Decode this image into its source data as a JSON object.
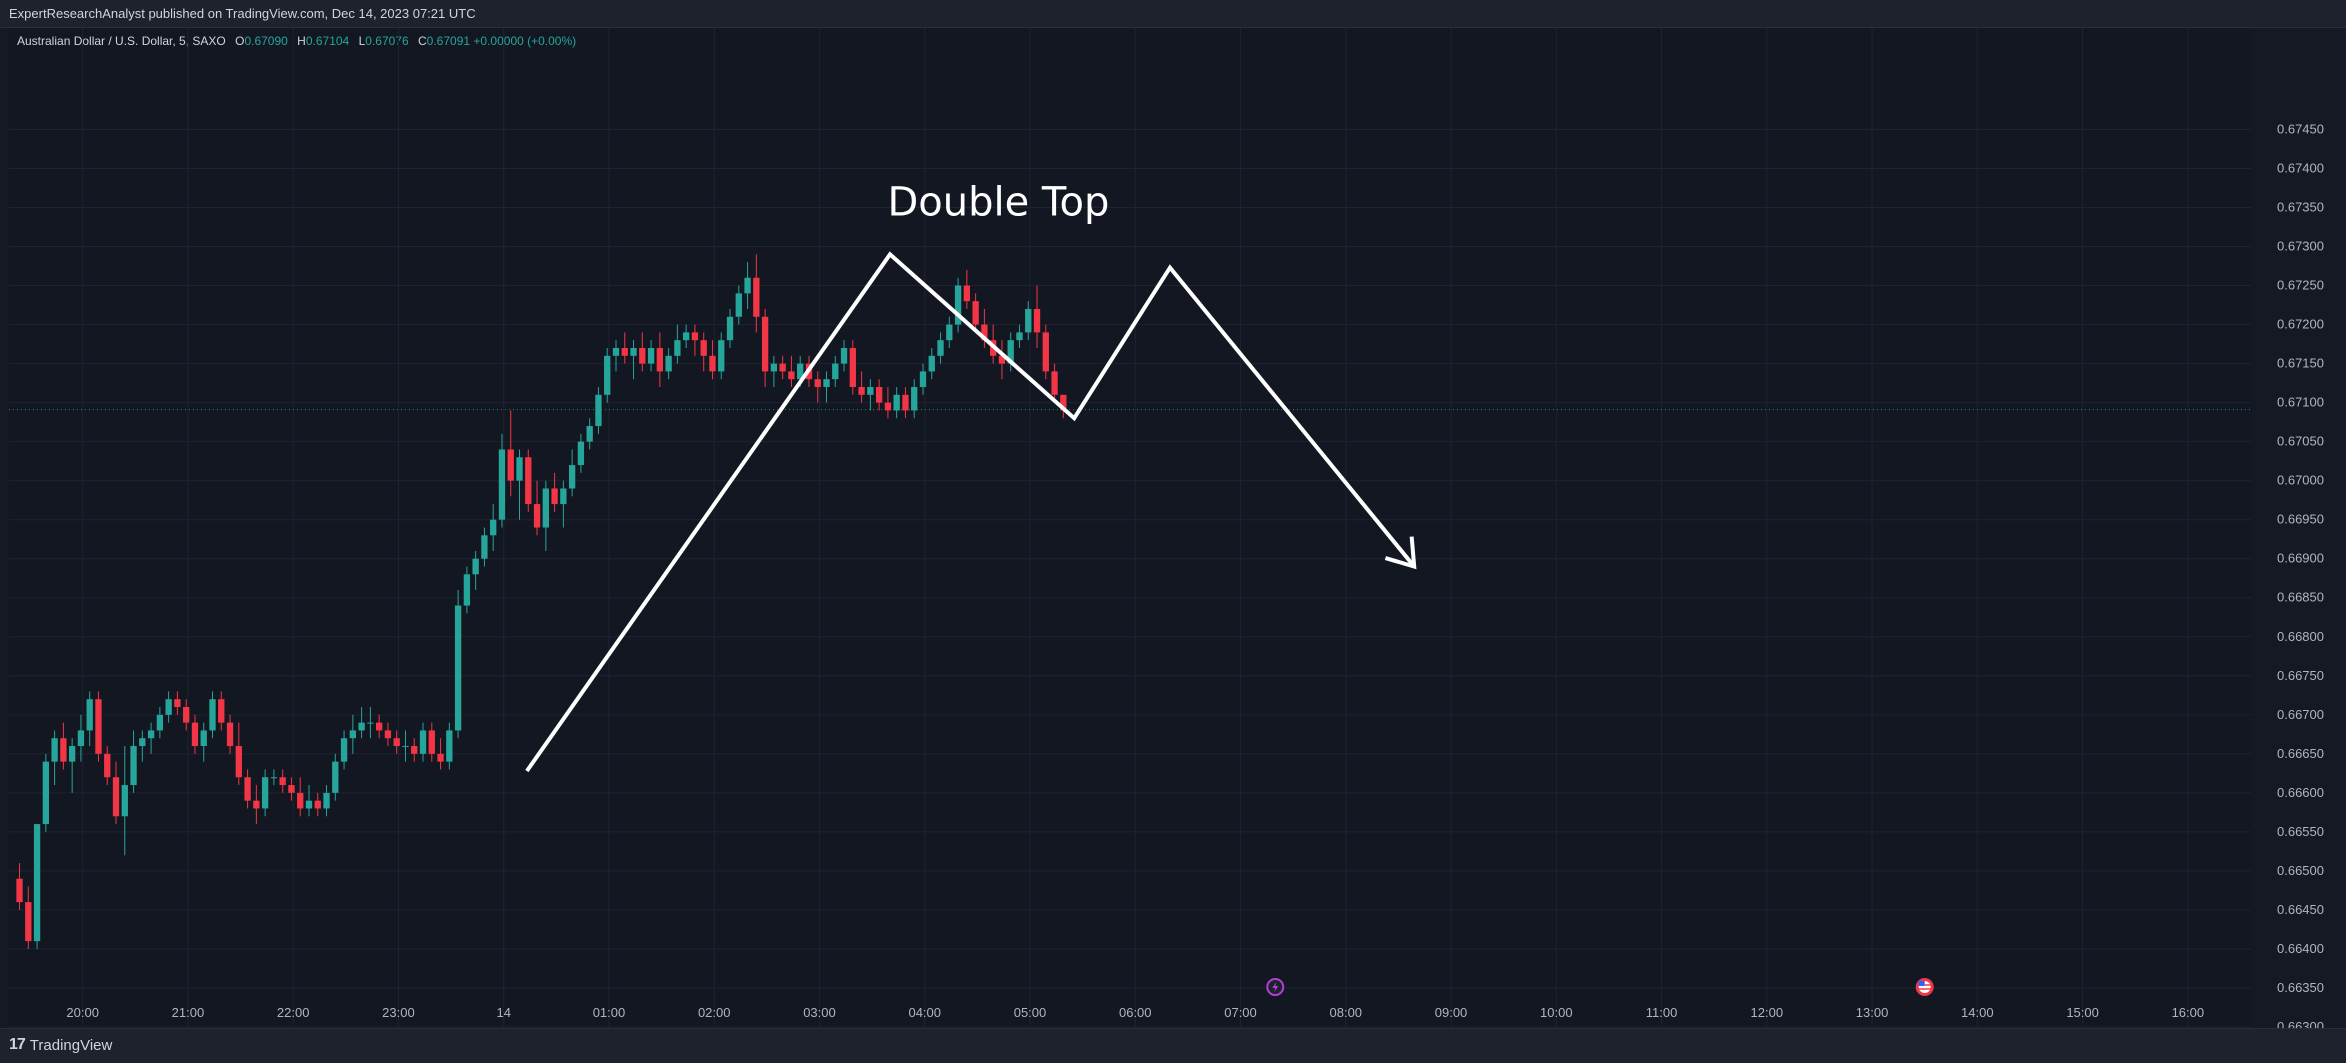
{
  "header": {
    "publisher": "ExpertResearchAnalyst published on TradingView.com, Dec 14, 2023 07:21 UTC"
  },
  "legend": {
    "symbol": "Australian Dollar / U.S. Dollar, 5, SAXO",
    "o_label": "O",
    "o_value": "0.67090",
    "h_label": "H",
    "h_value": "0.67104",
    "l_label": "L",
    "l_value": "0.67076",
    "c_label": "C",
    "c_value": "0.67091",
    "change": "+0.00000 (+0.00%)"
  },
  "footer": {
    "brand": "TradingView",
    "logo": "17"
  },
  "colors": {
    "up": "#26a69a",
    "down": "#f23645",
    "background": "#131722",
    "grid": "#1f2330",
    "annotation": "#ffffff"
  },
  "event_icons": [
    "lightning-event-icon",
    "us-flag-event-icon"
  ],
  "chart_data": {
    "type": "candlestick",
    "annotation": "Double Top",
    "ylim": [
      0.663,
      0.6758
    ],
    "xlim": [
      -0.7,
      20.6
    ],
    "y_ticks": [
      "0.67450",
      "0.67400",
      "0.67350",
      "0.67300",
      "0.67250",
      "0.67200",
      "0.67150",
      "0.67100",
      "0.67050",
      "0.67000",
      "0.66950",
      "0.66900",
      "0.66850",
      "0.66800",
      "0.66750",
      "0.66700",
      "0.66650",
      "0.66600",
      "0.66550",
      "0.66500",
      "0.66450",
      "0.66400",
      "0.66350",
      "0.66300"
    ],
    "x_ticks": [
      {
        "label": "20:00",
        "h": 0
      },
      {
        "label": "21:00",
        "h": 1
      },
      {
        "label": "22:00",
        "h": 2
      },
      {
        "label": "23:00",
        "h": 3
      },
      {
        "label": "14",
        "h": 4
      },
      {
        "label": "01:00",
        "h": 5
      },
      {
        "label": "02:00",
        "h": 6
      },
      {
        "label": "03:00",
        "h": 7
      },
      {
        "label": "04:00",
        "h": 8
      },
      {
        "label": "05:00",
        "h": 9
      },
      {
        "label": "06:00",
        "h": 10
      },
      {
        "label": "07:00",
        "h": 11
      },
      {
        "label": "08:00",
        "h": 12
      },
      {
        "label": "09:00",
        "h": 13
      },
      {
        "label": "10:00",
        "h": 14
      },
      {
        "label": "11:00",
        "h": 15
      },
      {
        "label": "12:00",
        "h": 16
      },
      {
        "label": "13:00",
        "h": 17
      },
      {
        "label": "14:00",
        "h": 18
      },
      {
        "label": "15:00",
        "h": 19
      },
      {
        "label": "16:00",
        "h": 20
      }
    ],
    "current_price": 0.67091,
    "candles": [
      [
        0.6649,
        0.6651,
        0.6645,
        0.6646
      ],
      [
        0.6646,
        0.6648,
        0.664,
        0.6641
      ],
      [
        0.6641,
        0.6656,
        0.664,
        0.6656
      ],
      [
        0.6656,
        0.6665,
        0.6655,
        0.6664
      ],
      [
        0.6664,
        0.6668,
        0.6661,
        0.6667
      ],
      [
        0.6667,
        0.6669,
        0.6663,
        0.6664
      ],
      [
        0.6664,
        0.6667,
        0.666,
        0.6666
      ],
      [
        0.6666,
        0.667,
        0.6664,
        0.6668
      ],
      [
        0.6668,
        0.6673,
        0.6666,
        0.6672
      ],
      [
        0.6672,
        0.6673,
        0.6664,
        0.6665
      ],
      [
        0.6665,
        0.6666,
        0.6661,
        0.6662
      ],
      [
        0.6662,
        0.6664,
        0.6656,
        0.6657
      ],
      [
        0.6657,
        0.6666,
        0.6652,
        0.6661
      ],
      [
        0.6661,
        0.6668,
        0.666,
        0.6666
      ],
      [
        0.6666,
        0.6668,
        0.6664,
        0.6667
      ],
      [
        0.6667,
        0.6669,
        0.6665,
        0.6668
      ],
      [
        0.6668,
        0.6671,
        0.6667,
        0.667
      ],
      [
        0.667,
        0.6673,
        0.6669,
        0.6672
      ],
      [
        0.6672,
        0.6673,
        0.667,
        0.6671
      ],
      [
        0.6671,
        0.6672,
        0.6668,
        0.6669
      ],
      [
        0.6669,
        0.667,
        0.6665,
        0.6666
      ],
      [
        0.6666,
        0.6669,
        0.6664,
        0.6668
      ],
      [
        0.6668,
        0.6673,
        0.6667,
        0.6672
      ],
      [
        0.6672,
        0.6673,
        0.6668,
        0.6669
      ],
      [
        0.6669,
        0.667,
        0.6665,
        0.6666
      ],
      [
        0.6666,
        0.6669,
        0.6661,
        0.6662
      ],
      [
        0.6662,
        0.6663,
        0.6658,
        0.6659
      ],
      [
        0.6659,
        0.6661,
        0.6656,
        0.6658
      ],
      [
        0.6658,
        0.6663,
        0.6657,
        0.6662
      ],
      [
        0.6662,
        0.6663,
        0.6661,
        0.6662
      ],
      [
        0.6662,
        0.6663,
        0.666,
        0.6661
      ],
      [
        0.6661,
        0.6662,
        0.6659,
        0.666
      ],
      [
        0.666,
        0.6662,
        0.6657,
        0.6658
      ],
      [
        0.6658,
        0.6661,
        0.6657,
        0.6659
      ],
      [
        0.6659,
        0.666,
        0.6657,
        0.6658
      ],
      [
        0.6658,
        0.6661,
        0.6657,
        0.666
      ],
      [
        0.666,
        0.6665,
        0.6659,
        0.6664
      ],
      [
        0.6664,
        0.6668,
        0.6663,
        0.6667
      ],
      [
        0.6667,
        0.667,
        0.6665,
        0.6668
      ],
      [
        0.6668,
        0.6671,
        0.6667,
        0.6669
      ],
      [
        0.6669,
        0.6671,
        0.6667,
        0.6669
      ],
      [
        0.6669,
        0.667,
        0.6667,
        0.6668
      ],
      [
        0.6668,
        0.6669,
        0.6666,
        0.6667
      ],
      [
        0.6667,
        0.6668,
        0.6665,
        0.6666
      ],
      [
        0.6666,
        0.6668,
        0.6664,
        0.6666
      ],
      [
        0.6666,
        0.6667,
        0.6664,
        0.6665
      ],
      [
        0.6665,
        0.6669,
        0.6664,
        0.6668
      ],
      [
        0.6668,
        0.6669,
        0.6664,
        0.6665
      ],
      [
        0.6665,
        0.6667,
        0.6663,
        0.6664
      ],
      [
        0.6664,
        0.6669,
        0.6663,
        0.6668
      ],
      [
        0.6668,
        0.6686,
        0.6667,
        0.6684
      ],
      [
        0.6684,
        0.6689,
        0.6683,
        0.6688
      ],
      [
        0.6688,
        0.6691,
        0.6686,
        0.669
      ],
      [
        0.669,
        0.6694,
        0.6689,
        0.6693
      ],
      [
        0.6693,
        0.6697,
        0.6691,
        0.6695
      ],
      [
        0.6695,
        0.6706,
        0.6694,
        0.6704
      ],
      [
        0.6704,
        0.6709,
        0.6698,
        0.67
      ],
      [
        0.67,
        0.6704,
        0.6695,
        0.6703
      ],
      [
        0.6703,
        0.6704,
        0.6696,
        0.6697
      ],
      [
        0.6697,
        0.67,
        0.6693,
        0.6694
      ],
      [
        0.6694,
        0.67,
        0.6691,
        0.6699
      ],
      [
        0.6699,
        0.6701,
        0.6696,
        0.6697
      ],
      [
        0.6697,
        0.67,
        0.6694,
        0.6699
      ],
      [
        0.6699,
        0.6704,
        0.6698,
        0.6702
      ],
      [
        0.6702,
        0.6706,
        0.6701,
        0.6705
      ],
      [
        0.6705,
        0.6708,
        0.6704,
        0.6707
      ],
      [
        0.6707,
        0.6712,
        0.6706,
        0.6711
      ],
      [
        0.6711,
        0.6717,
        0.671,
        0.6716
      ],
      [
        0.6716,
        0.6718,
        0.6714,
        0.6717
      ],
      [
        0.6717,
        0.6719,
        0.6715,
        0.6716
      ],
      [
        0.6716,
        0.6718,
        0.6713,
        0.6717
      ],
      [
        0.6717,
        0.6719,
        0.6714,
        0.6715
      ],
      [
        0.6715,
        0.6718,
        0.6714,
        0.6717
      ],
      [
        0.6717,
        0.6719,
        0.6712,
        0.6714
      ],
      [
        0.6714,
        0.6717,
        0.6713,
        0.6716
      ],
      [
        0.6716,
        0.672,
        0.6715,
        0.6718
      ],
      [
        0.6718,
        0.672,
        0.6717,
        0.6719
      ],
      [
        0.6719,
        0.672,
        0.6716,
        0.6718
      ],
      [
        0.6718,
        0.6719,
        0.6714,
        0.6716
      ],
      [
        0.6716,
        0.6718,
        0.6713,
        0.6714
      ],
      [
        0.6714,
        0.6719,
        0.6713,
        0.6718
      ],
      [
        0.6718,
        0.6722,
        0.6717,
        0.6721
      ],
      [
        0.6721,
        0.6725,
        0.672,
        0.6724
      ],
      [
        0.6724,
        0.6728,
        0.6722,
        0.6726
      ],
      [
        0.6726,
        0.6729,
        0.6719,
        0.6721
      ],
      [
        0.6721,
        0.6722,
        0.6712,
        0.6714
      ],
      [
        0.6714,
        0.6716,
        0.6712,
        0.6715
      ],
      [
        0.6715,
        0.6716,
        0.6713,
        0.6714
      ],
      [
        0.6714,
        0.6716,
        0.6712,
        0.6713
      ],
      [
        0.6713,
        0.6716,
        0.6712,
        0.6715
      ],
      [
        0.6715,
        0.6716,
        0.6712,
        0.6713
      ],
      [
        0.6713,
        0.6714,
        0.671,
        0.6712
      ],
      [
        0.6712,
        0.6714,
        0.671,
        0.6713
      ],
      [
        0.6713,
        0.6716,
        0.6712,
        0.6715
      ],
      [
        0.6715,
        0.6718,
        0.6714,
        0.6717
      ],
      [
        0.6717,
        0.6718,
        0.6711,
        0.6712
      ],
      [
        0.6712,
        0.6714,
        0.671,
        0.6711
      ],
      [
        0.6711,
        0.6713,
        0.6709,
        0.6712
      ],
      [
        0.6712,
        0.6713,
        0.6709,
        0.671
      ],
      [
        0.671,
        0.6712,
        0.6708,
        0.6709
      ],
      [
        0.6709,
        0.6712,
        0.6708,
        0.6711
      ],
      [
        0.6711,
        0.6712,
        0.6708,
        0.6709
      ],
      [
        0.6709,
        0.6713,
        0.6708,
        0.6712
      ],
      [
        0.6712,
        0.6715,
        0.6711,
        0.6714
      ],
      [
        0.6714,
        0.6717,
        0.6713,
        0.6716
      ],
      [
        0.6716,
        0.6719,
        0.6715,
        0.6718
      ],
      [
        0.6718,
        0.6721,
        0.6717,
        0.672
      ],
      [
        0.672,
        0.6726,
        0.6719,
        0.6725
      ],
      [
        0.6725,
        0.6727,
        0.6722,
        0.6723
      ],
      [
        0.6723,
        0.6724,
        0.6719,
        0.672
      ],
      [
        0.672,
        0.6722,
        0.6717,
        0.6718
      ],
      [
        0.6718,
        0.672,
        0.6715,
        0.6716
      ],
      [
        0.6716,
        0.6718,
        0.6713,
        0.6715
      ],
      [
        0.6715,
        0.6719,
        0.6714,
        0.6718
      ],
      [
        0.6718,
        0.672,
        0.6717,
        0.6719
      ],
      [
        0.6719,
        0.6723,
        0.6718,
        0.6722
      ],
      [
        0.6722,
        0.6725,
        0.6717,
        0.6719
      ],
      [
        0.6719,
        0.672,
        0.6713,
        0.6714
      ],
      [
        0.6714,
        0.6715,
        0.671,
        0.6711
      ],
      [
        0.6711,
        0.6711,
        0.6708,
        0.6709
      ]
    ],
    "pattern_line": [
      {
        "h": 4.22,
        "price": 0.66628
      },
      {
        "h": 7.67,
        "price": 0.6729
      },
      {
        "h": 9.42,
        "price": 0.6708
      },
      {
        "h": 10.33,
        "price": 0.67273
      },
      {
        "h": 12.65,
        "price": 0.6689
      }
    ]
  }
}
